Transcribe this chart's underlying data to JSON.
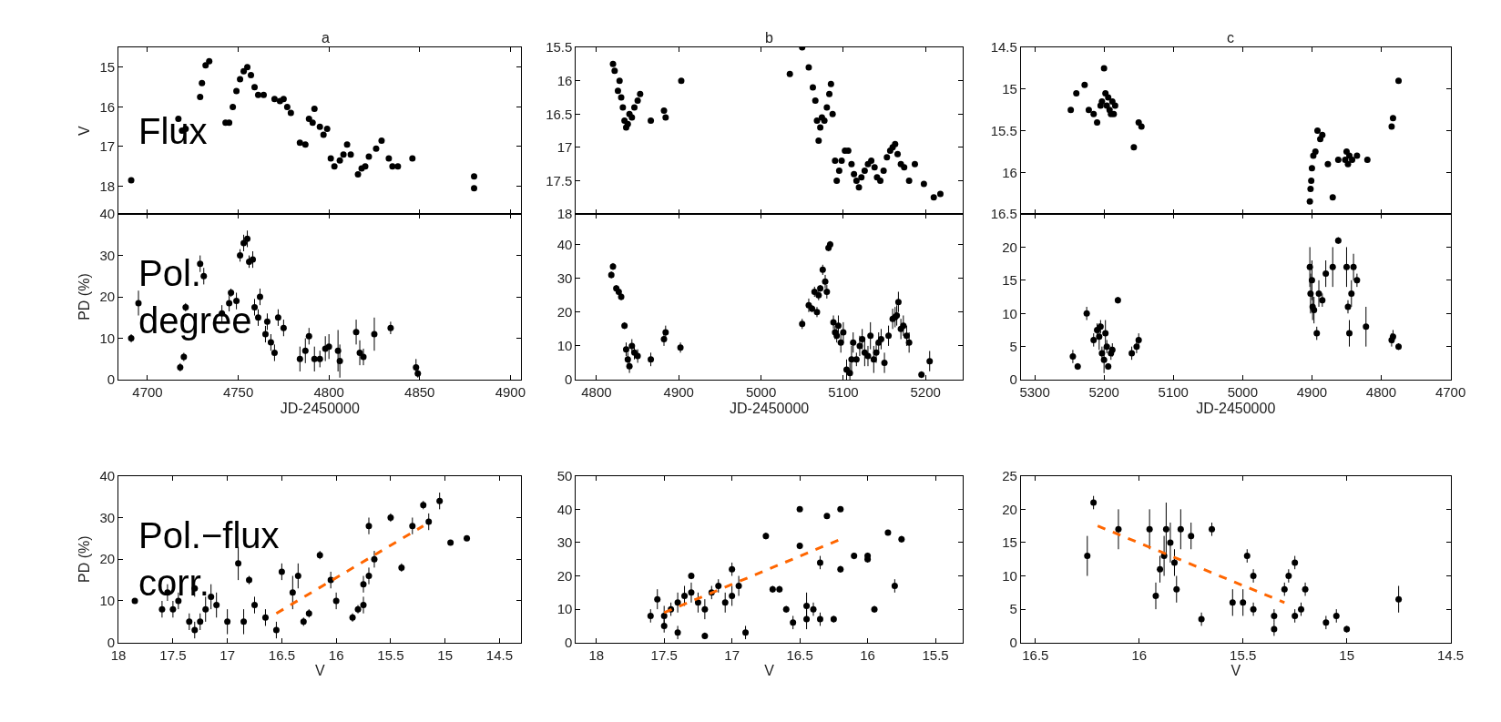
{
  "chart_data": [
    {
      "type": "scatter",
      "title": "a",
      "ylabel": "V",
      "tick_labels": "y",
      "marker": "circle",
      "xlim": [
        4684,
        4906
      ],
      "xticks": [
        4700,
        4750,
        4800,
        4850,
        4900
      ],
      "ylim": [
        18.7,
        14.5
      ],
      "yticks": [
        15,
        16,
        17,
        18
      ],
      "annotations": [
        "Flux"
      ],
      "series": [
        {
          "color": "#000000",
          "x": [
            4691,
            4717,
            4719,
            4721,
            4729,
            4730,
            4732,
            4734,
            4743,
            4745,
            4747,
            4749,
            4751,
            4753,
            4755,
            4757,
            4759,
            4761,
            4764,
            4770,
            4773,
            4775,
            4777,
            4779,
            4784,
            4787,
            4789,
            4791,
            4792,
            4795,
            4797,
            4799,
            4801,
            4803,
            4806,
            4808,
            4810,
            4812,
            4816,
            4818,
            4820,
            4822,
            4826,
            4829,
            4833,
            4835,
            4838,
            4846,
            4880,
            4880
          ],
          "values": [
            17.85,
            16.3,
            16.6,
            16.55,
            15.75,
            15.4,
            14.95,
            14.85,
            16.4,
            16.4,
            16.0,
            15.6,
            15.3,
            15.1,
            15.0,
            15.2,
            15.5,
            15.7,
            15.7,
            15.8,
            15.85,
            15.8,
            16.0,
            16.15,
            16.9,
            16.95,
            16.3,
            16.4,
            16.05,
            16.5,
            16.7,
            16.55,
            17.3,
            17.5,
            17.35,
            17.2,
            16.95,
            17.2,
            17.7,
            17.55,
            17.5,
            17.25,
            17.05,
            16.85,
            17.3,
            17.5,
            17.5,
            17.3,
            17.75,
            18.05
          ]
        }
      ]
    },
    {
      "type": "scatter",
      "title": "b",
      "tick_labels": "y",
      "marker": "circle",
      "xlim": [
        4775,
        5245
      ],
      "xticks": [
        4800,
        4900,
        5000,
        5100,
        5200
      ],
      "ylim": [
        18,
        15.5
      ],
      "yticks": [
        15.5,
        16,
        16.5,
        17,
        17.5,
        18
      ],
      "series": [
        {
          "color": "#000000",
          "x": [
            4820,
            4822,
            4826,
            4828,
            4830,
            4832,
            4834,
            4836,
            4838,
            4840,
            4843,
            4846,
            4850,
            4853,
            4866,
            4882,
            4884,
            4903,
            5035,
            5050,
            5058,
            5063,
            5066,
            5068,
            5070,
            5072,
            5074,
            5077,
            5080,
            5083,
            5085,
            5087,
            5090,
            5092,
            5095,
            5098,
            5102,
            5106,
            5110,
            5113,
            5116,
            5119,
            5122,
            5126,
            5130,
            5134,
            5138,
            5141,
            5145,
            5149,
            5153,
            5157,
            5160,
            5163,
            5166,
            5170,
            5174,
            5180,
            5187,
            5198,
            5210,
            5218
          ],
          "values": [
            15.75,
            15.85,
            16.15,
            16.0,
            16.25,
            16.4,
            16.6,
            16.7,
            16.65,
            16.5,
            16.55,
            16.4,
            16.3,
            16.2,
            16.6,
            16.45,
            16.55,
            16.0,
            15.9,
            15.5,
            15.8,
            16.1,
            16.3,
            16.6,
            16.9,
            16.7,
            16.55,
            16.6,
            16.4,
            16.2,
            16.05,
            16.5,
            17.2,
            17.5,
            17.35,
            17.2,
            17.05,
            17.05,
            17.25,
            17.4,
            17.5,
            17.6,
            17.45,
            17.35,
            17.25,
            17.2,
            17.3,
            17.45,
            17.5,
            17.35,
            17.15,
            17.05,
            17.0,
            16.95,
            17.1,
            17.25,
            17.3,
            17.5,
            17.25,
            17.55,
            17.75,
            17.7
          ]
        }
      ]
    },
    {
      "type": "scatter",
      "title": "c",
      "tick_labels": "y",
      "marker": "circle",
      "xlim": [
        5320,
        4700
      ],
      "xticks": [
        5300,
        5200,
        5100,
        5000,
        4900,
        4800,
        4700
      ],
      "ylim": [
        16.5,
        14.5
      ],
      "yticks": [
        14.5,
        15,
        15.5,
        16,
        16.5
      ],
      "series": [
        {
          "color": "#000000",
          "x": [
            5248,
            5240,
            5228,
            5222,
            5215,
            5210,
            5205,
            5203,
            5200,
            5198,
            5196,
            5194,
            5192,
            5190,
            5188,
            5186,
            5184,
            5157,
            5150,
            5146,
            4903,
            4902,
            4901,
            4900,
            4898,
            4895,
            4892,
            4888,
            4885,
            4877,
            4870,
            4862,
            4852,
            4850,
            4848,
            4846,
            4842,
            4835,
            4820,
            4785,
            4783,
            4775
          ],
          "values": [
            15.25,
            15.05,
            14.95,
            15.25,
            15.3,
            15.4,
            15.2,
            15.15,
            14.75,
            15.05,
            15.2,
            15.1,
            15.25,
            15.3,
            15.15,
            15.3,
            15.2,
            15.7,
            15.4,
            15.45,
            16.35,
            16.2,
            16.1,
            15.95,
            15.8,
            15.75,
            15.5,
            15.6,
            15.55,
            15.9,
            16.3,
            15.85,
            15.85,
            15.75,
            15.9,
            15.8,
            15.85,
            15.8,
            15.85,
            15.45,
            15.35,
            14.9
          ]
        }
      ]
    },
    {
      "type": "scatter",
      "xlabel": "JD-2450000",
      "ylabel": "PD (%)",
      "marker": "circle",
      "xlim": [
        4684,
        4906
      ],
      "xticks": [
        4700,
        4750,
        4800,
        4850,
        4900
      ],
      "ylim": [
        0,
        40
      ],
      "yticks": [
        0,
        10,
        20,
        30,
        40
      ],
      "annotations": [
        "Pol.\ndegree"
      ],
      "series": [
        {
          "color": "#000000",
          "x": [
            4691,
            4695,
            4718,
            4720,
            4721,
            4729,
            4731,
            4741,
            4745,
            4746,
            4749,
            4751,
            4753,
            4755,
            4756,
            4758,
            4759,
            4761,
            4762,
            4765,
            4766,
            4768,
            4770,
            4772,
            4775,
            4784,
            4787,
            4789,
            4792,
            4795,
            4798,
            4800,
            4805,
            4806,
            4815,
            4817,
            4819,
            4825,
            4834,
            4848,
            4849
          ],
          "values": [
            10,
            18.5,
            3,
            5.5,
            17.5,
            28,
            25,
            16,
            18.5,
            21,
            19,
            30,
            33,
            34,
            28.5,
            29,
            17.5,
            15,
            20,
            11,
            14,
            9,
            6.5,
            15,
            12.5,
            5,
            7,
            10.5,
            5,
            5,
            7.5,
            8,
            7,
            4.5,
            11.5,
            6.5,
            5.5,
            11,
            12.5,
            3,
            1.5
          ],
          "errors": [
            1,
            3,
            1,
            1,
            1,
            2,
            2,
            2,
            2,
            1,
            2,
            1.5,
            2,
            2,
            1.5,
            2,
            2,
            2,
            2,
            2,
            2,
            2,
            2,
            2,
            2,
            3,
            3,
            2,
            3,
            2,
            3,
            3,
            5,
            4,
            3,
            3,
            2,
            4,
            1.5,
            2,
            1
          ]
        }
      ]
    },
    {
      "type": "scatter",
      "xlabel": "JD-2450000",
      "marker": "circle",
      "xlim": [
        4775,
        5245
      ],
      "xticks": [
        4800,
        4900,
        5000,
        5100,
        5200
      ],
      "ylim": [
        0,
        49
      ],
      "yticks": [
        0,
        10,
        20,
        30,
        40
      ],
      "series": [
        {
          "color": "#000000",
          "x": [
            4818,
            4820,
            4824,
            4827,
            4830,
            4834,
            4836,
            4838,
            4840,
            4843,
            4846,
            4850,
            4866,
            4882,
            4884,
            4902,
            5050,
            5058,
            5062,
            5065,
            5068,
            5070,
            5072,
            5075,
            5078,
            5080,
            5082,
            5084,
            5088,
            5090,
            5092,
            5094,
            5097,
            5100,
            5104,
            5108,
            5110,
            5112,
            5116,
            5120,
            5123,
            5126,
            5130,
            5133,
            5137,
            5140,
            5143,
            5146,
            5150,
            5155,
            5160,
            5163,
            5165,
            5167,
            5170,
            5173,
            5177,
            5180,
            5195,
            5205
          ],
          "values": [
            31,
            33.5,
            27,
            26,
            24.5,
            16,
            9,
            6,
            4,
            10,
            8,
            7,
            6,
            12,
            14,
            9.5,
            16.5,
            22,
            21,
            26,
            20,
            25,
            27,
            32.5,
            29,
            26,
            39,
            40,
            17,
            14,
            13,
            16,
            11,
            14,
            3,
            2,
            6,
            11,
            6,
            10,
            12,
            8,
            7,
            13,
            6,
            8,
            11,
            12,
            5,
            13,
            18,
            18.5,
            19,
            23,
            15,
            16,
            13,
            11,
            1.5,
            5.5
          ],
          "errors": [
            1,
            1,
            1,
            1,
            1,
            1,
            2,
            2,
            2,
            2,
            2,
            2,
            2,
            2,
            2,
            1.5,
            1.5,
            2,
            1,
            1.5,
            1.5,
            1.5,
            1,
            1.5,
            2,
            2,
            1,
            1,
            2,
            2,
            2,
            3,
            3,
            3,
            3,
            3,
            4,
            3,
            2,
            3,
            3,
            4,
            3,
            4,
            4,
            3,
            3,
            3,
            3,
            3,
            3,
            3,
            3,
            3,
            3,
            3,
            3,
            3,
            1,
            3
          ]
        }
      ]
    },
    {
      "type": "scatter",
      "xlabel": "JD-2450000",
      "marker": "circle",
      "xlim": [
        5320,
        4700
      ],
      "xticks": [
        5300,
        5200,
        5100,
        5000,
        4900,
        4800,
        4700
      ],
      "ylim": [
        0,
        25
      ],
      "yticks": [
        0,
        5,
        10,
        15,
        20
      ],
      "series": [
        {
          "color": "#000000",
          "x": [
            5245,
            5238,
            5225,
            5215,
            5210,
            5207,
            5205,
            5203,
            5200,
            5198,
            5196,
            5194,
            5190,
            5188,
            5180,
            5160,
            5153,
            5150,
            4903,
            4902,
            4900,
            4899,
            4897,
            4893,
            4890,
            4885,
            4880,
            4870,
            4862,
            4850,
            4848,
            4846,
            4843,
            4840,
            4835,
            4822,
            4785,
            4783,
            4775
          ],
          "values": [
            3.5,
            2,
            10,
            6,
            7.5,
            6.5,
            8,
            4,
            3,
            7,
            5,
            2,
            4,
            4.5,
            12,
            4,
            5,
            6,
            17,
            13,
            15,
            11,
            10.5,
            7,
            13,
            12,
            16,
            17,
            21,
            17,
            11,
            7,
            13,
            17,
            15,
            8,
            6,
            6.5,
            5
          ],
          "errors": [
            1,
            0.5,
            1,
            1,
            1,
            2,
            1,
            1,
            2,
            2,
            1,
            0.5,
            1,
            1,
            0.5,
            1,
            1,
            1,
            3,
            3,
            3,
            2,
            2,
            1,
            2,
            1,
            2,
            3,
            0.5,
            3,
            1,
            2,
            2,
            2,
            1,
            3,
            1,
            1,
            0.5
          ]
        }
      ]
    },
    {
      "type": "scatter",
      "xlabel": "V",
      "ylabel": "PD (%)",
      "marker": "circle",
      "xlim": [
        18,
        14.3
      ],
      "xticks": [
        18,
        17.5,
        17,
        16.5,
        16,
        15.5,
        15,
        14.5
      ],
      "ylim": [
        0,
        40
      ],
      "yticks": [
        0,
        10,
        20,
        30,
        40
      ],
      "annotations": [
        "Pol.−flux\ncorr."
      ],
      "series": [
        {
          "color": "#000000",
          "x": [
            17.85,
            17.6,
            17.55,
            17.5,
            17.45,
            17.35,
            17.3,
            17.3,
            17.25,
            17.2,
            17.15,
            17.1,
            17.0,
            16.9,
            16.85,
            16.8,
            16.75,
            16.65,
            16.55,
            16.5,
            16.4,
            16.35,
            16.3,
            16.25,
            16.15,
            16.05,
            16.0,
            15.85,
            15.8,
            15.75,
            15.75,
            15.7,
            15.7,
            15.65,
            15.5,
            15.4,
            15.3,
            15.2,
            15.15,
            15.05,
            14.95,
            14.8
          ],
          "values": [
            10,
            8,
            12,
            8,
            10,
            5,
            3,
            13,
            5,
            8,
            11,
            9,
            5,
            19,
            5,
            15,
            9,
            6,
            3,
            17,
            12,
            16,
            5,
            7,
            21,
            15,
            10,
            6,
            8,
            14,
            9,
            28,
            16,
            20,
            30,
            18,
            28,
            33,
            29,
            34,
            24,
            25
          ],
          "errors": [
            null,
            2,
            2,
            2,
            2,
            2,
            2,
            2,
            2,
            3,
            3,
            3,
            3,
            4,
            3,
            1,
            2,
            2,
            2,
            2,
            4,
            3,
            1,
            1,
            1,
            2,
            2,
            1,
            1,
            2,
            2,
            2,
            2,
            2,
            1,
            1,
            2,
            1,
            2,
            2,
            null,
            null
          ]
        },
        {
          "type": "line",
          "color": "#ff6600",
          "line_style": "dashed",
          "marker": "none",
          "x": [
            16.55,
            15.2
          ],
          "values": [
            7,
            28
          ]
        }
      ]
    },
    {
      "type": "scatter",
      "xlabel": "V",
      "marker": "circle",
      "xlim": [
        18.15,
        15.3
      ],
      "xticks": [
        18,
        17.5,
        17,
        16.5,
        16,
        15.5
      ],
      "ylim": [
        0,
        50
      ],
      "yticks": [
        0,
        10,
        20,
        30,
        40,
        50
      ],
      "series": [
        {
          "color": "#000000",
          "x": [
            17.6,
            17.55,
            17.5,
            17.5,
            17.45,
            17.4,
            17.4,
            17.35,
            17.3,
            17.3,
            17.25,
            17.2,
            17.2,
            17.15,
            17.1,
            17.05,
            17.0,
            17.0,
            16.95,
            16.9,
            16.75,
            16.7,
            16.65,
            16.6,
            16.55,
            16.5,
            16.5,
            16.45,
            16.45,
            16.4,
            16.35,
            16.35,
            16.3,
            16.25,
            16.2,
            16.2,
            16.1,
            16.0,
            16.0,
            15.95,
            15.85,
            15.8,
            15.75
          ],
          "values": [
            8,
            13,
            8,
            5,
            10,
            12,
            3,
            14,
            15,
            20,
            12,
            10,
            2,
            15,
            17,
            12,
            22,
            14,
            17,
            3,
            32,
            16,
            16,
            10,
            6,
            40,
            29,
            11,
            7,
            10,
            7,
            24,
            38,
            7,
            40,
            22,
            26,
            26,
            25,
            10,
            33,
            17,
            31
          ],
          "errors": [
            2,
            3,
            3,
            2,
            2,
            3,
            2,
            3,
            3,
            1,
            3,
            3,
            1,
            2,
            2,
            3,
            2,
            3,
            3,
            2,
            1,
            1,
            1,
            1,
            2,
            0.5,
            1,
            4,
            3,
            2,
            2,
            2,
            0.5,
            1,
            0.5,
            1,
            1,
            1,
            1,
            1,
            0.5,
            2,
            1
          ]
        },
        {
          "type": "line",
          "color": "#ff6600",
          "line_style": "dashed",
          "marker": "none",
          "x": [
            17.5,
            16.2
          ],
          "values": [
            9,
            31
          ]
        }
      ]
    },
    {
      "type": "scatter",
      "xlabel": "V",
      "marker": "circle",
      "xlim": [
        16.57,
        14.5
      ],
      "xticks": [
        16.5,
        16,
        15.5,
        15,
        14.5
      ],
      "ylim": [
        0,
        25
      ],
      "yticks": [
        0,
        5,
        10,
        15,
        20,
        25
      ],
      "series": [
        {
          "color": "#000000",
          "x": [
            16.25,
            16.22,
            16.1,
            15.95,
            15.92,
            15.9,
            15.88,
            15.87,
            15.85,
            15.83,
            15.82,
            15.8,
            15.75,
            15.7,
            15.65,
            15.55,
            15.5,
            15.48,
            15.45,
            15.45,
            15.35,
            15.35,
            15.3,
            15.28,
            15.25,
            15.25,
            15.22,
            15.2,
            15.1,
            15.05,
            15.0,
            14.75
          ],
          "values": [
            13,
            21,
            17,
            17,
            7,
            11,
            13,
            17,
            15,
            12,
            8,
            17,
            16,
            3.5,
            17,
            6,
            6,
            13,
            10,
            5,
            2,
            4,
            8,
            10,
            12,
            4,
            5,
            8,
            3,
            4,
            2,
            6.5
          ],
          "errors": [
            3,
            1,
            3,
            3,
            2,
            2,
            3,
            4,
            3,
            2,
            2,
            3,
            2,
            1,
            1,
            2,
            2,
            1,
            1,
            1,
            1,
            1,
            1,
            1,
            1,
            1,
            1,
            1,
            1,
            1,
            0.5,
            2
          ]
        },
        {
          "type": "line",
          "color": "#ff6600",
          "line_style": "dashed",
          "marker": "none",
          "x": [
            16.2,
            15.3
          ],
          "values": [
            17.5,
            6
          ]
        }
      ]
    }
  ]
}
